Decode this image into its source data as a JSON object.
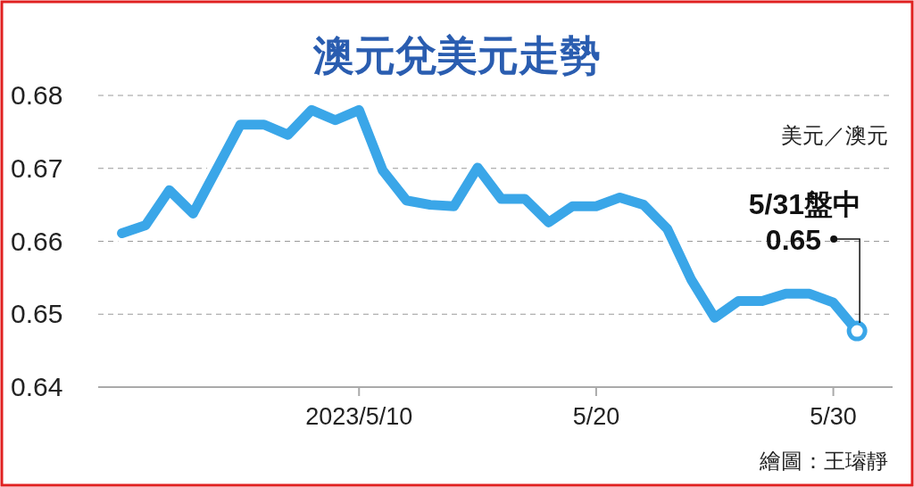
{
  "chart_data": {
    "type": "line",
    "title": "澳元兌美元走勢",
    "ylabel": "美元／澳元",
    "x": [
      "2023-04-30",
      "2023-05-01",
      "2023-05-02",
      "2023-05-03",
      "2023-05-05",
      "2023-05-06",
      "2023-05-07",
      "2023-05-08",
      "2023-05-09",
      "2023-05-10",
      "2023-05-11",
      "2023-05-12",
      "2023-05-13",
      "2023-05-14",
      "2023-05-15",
      "2023-05-16",
      "2023-05-17",
      "2023-05-18",
      "2023-05-19",
      "2023-05-20",
      "2023-05-21",
      "2023-05-22",
      "2023-05-23",
      "2023-05-24",
      "2023-05-25",
      "2023-05-26",
      "2023-05-27",
      "2023-05-28",
      "2023-05-29",
      "2023-05-30",
      "2023-05-31"
    ],
    "series": [
      {
        "color": "#3aa6e8",
        "values": [
          0.6611,
          0.6622,
          0.667,
          0.6638,
          0.676,
          0.676,
          0.6746,
          0.678,
          0.6766,
          0.678,
          0.6697,
          0.6656,
          0.665,
          0.6648,
          0.6701,
          0.6658,
          0.6658,
          0.6626,
          0.6648,
          0.6648,
          0.666,
          0.665,
          0.6617,
          0.6548,
          0.6495,
          0.6518,
          0.6518,
          0.6528,
          0.6528,
          0.6516,
          0.6477
        ]
      }
    ],
    "xlim": [
      "2023-04-29",
      "2023-06-01T12:00"
    ],
    "xticks": [
      {
        "value": "2023-05-10",
        "label": "2023/5/10"
      },
      {
        "value": "2023-05-20",
        "label": "5/20"
      },
      {
        "value": "2023-05-30",
        "label": "5/30"
      }
    ],
    "ylim": [
      0.64,
      0.68
    ],
    "yticks": [
      0.64,
      0.65,
      0.66,
      0.67,
      0.68
    ],
    "grid": "y",
    "marker": "none",
    "line_style": "solid",
    "annotations": [
      "5/31盤中",
      {
        "text": "0.65",
        "x": "2023-05-31",
        "y": 0.6477
      },
      "繪圖：王璿靜"
    ]
  }
}
